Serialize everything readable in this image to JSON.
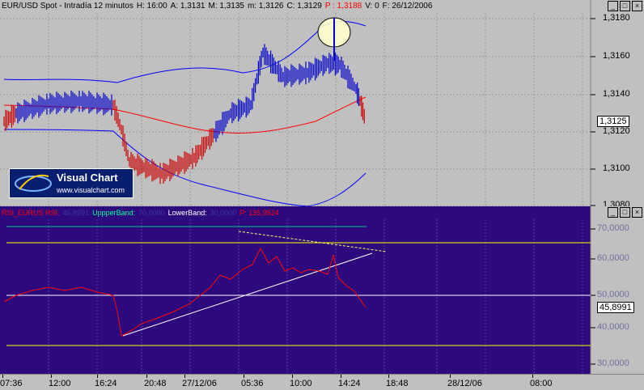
{
  "price_pane": {
    "title_parts": [
      {
        "text": "EUR/USD Spot - Intradía 12 minutos",
        "color": "#000000"
      },
      {
        "text": "H: 16:00",
        "color": "#000000"
      },
      {
        "text": "A: 1,3131",
        "color": "#000000"
      },
      {
        "text": "M: 1,3135",
        "color": "#000000"
      },
      {
        "text": "m: 1,3126",
        "color": "#000000"
      },
      {
        "text": "C: 1,3129",
        "color": "#000000"
      },
      {
        "text": "P : 1,3188",
        "color": "#ff0000"
      },
      {
        "text": "V: 0",
        "color": "#000000"
      },
      {
        "text": "F: 26/12/2006",
        "color": "#000000"
      }
    ],
    "y_ticks": [
      "1,3180",
      "1,3160",
      "1,3140",
      "1,3120",
      "1,3100",
      "1,3080"
    ],
    "last_price": "1,3125",
    "background": "#c0c0c0",
    "colors": {
      "candles_up": "#0000cc",
      "candles_down": "#cc0000",
      "bollinger": "#0000ff",
      "moving_average": "#ff0000"
    }
  },
  "rsi_pane": {
    "title_parts": [
      {
        "text": "RSI_EURUS RSI:",
        "color": "#ff0000"
      },
      {
        "text": "45,8991",
        "color": "#3a3a9a"
      },
      {
        "text": "UppperBand:",
        "color": "#00ff99"
      },
      {
        "text": "70,0000",
        "color": "#3a3a9a"
      },
      {
        "text": "LowerBand:",
        "color": "#ffffff"
      },
      {
        "text": "30,0000",
        "color": "#3a3a9a"
      },
      {
        "text": "P: 135,9524",
        "color": "#ff0000"
      }
    ],
    "y_ticks": [
      "70,0000",
      "60,0000",
      "50,0000",
      "40,0000",
      "30,0000"
    ],
    "last_value": "45,8991",
    "background": "#2c0a7e"
  },
  "time_axis": {
    "labels": [
      "07:36",
      "12:00",
      "16:24",
      "20:48",
      "27/12/06",
      "05:36",
      "10:00",
      "14:24",
      "18:48",
      "28/12/06",
      "08:00"
    ]
  },
  "logo": {
    "title": "Visual Chart",
    "url": "www.visualchart.com"
  },
  "window_buttons": {
    "minimize": "_",
    "maximize": "□",
    "close": "×"
  }
}
